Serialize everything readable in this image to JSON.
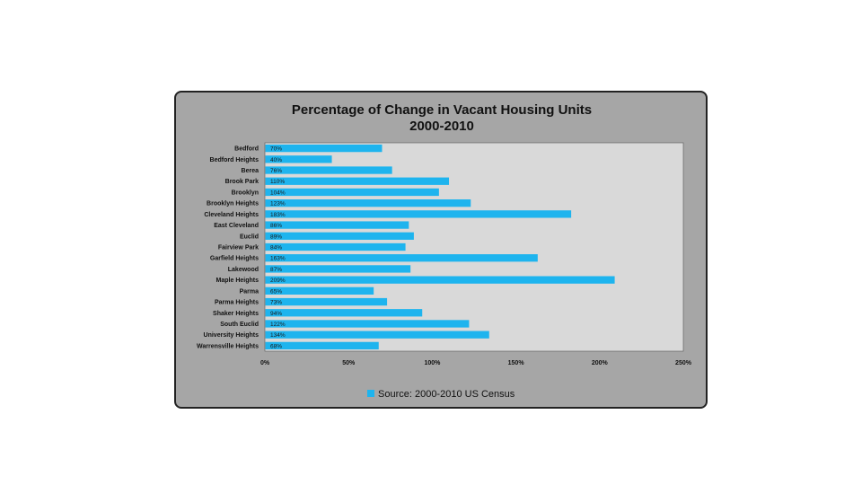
{
  "chart_data": {
    "type": "bar",
    "orientation": "horizontal",
    "title": [
      "Percentage of Change in Vacant Housing Units",
      "2000-2010"
    ],
    "categories": [
      "Bedford",
      "Bedford Heights",
      "Berea",
      "Brook Park",
      "Brooklyn",
      "Brooklyn Heights",
      "Cleveland Heights",
      "East Cleveland",
      "Euclid",
      "Fairview Park",
      "Garfield Heights",
      "Lakewood",
      "Maple Heights",
      "Parma",
      "Parma Heights",
      "Shaker Heights",
      "South Euclid",
      "University Heights",
      "Warrensville Heights"
    ],
    "values": [
      70,
      40,
      76,
      110,
      104,
      123,
      183,
      86,
      89,
      84,
      163,
      87,
      209,
      65,
      73,
      94,
      122,
      134,
      68
    ],
    "data_labels": [
      "70%",
      "40%",
      "76%",
      "110%",
      "104%",
      "123%",
      "183%",
      "86%",
      "89%",
      "84%",
      "163%",
      "87%",
      "209%",
      "65%",
      "73%",
      "94%",
      "122%",
      "134%",
      "68%"
    ],
    "xlim": [
      0,
      250
    ],
    "x_ticks": [
      0,
      50,
      100,
      150,
      200,
      250
    ],
    "x_tick_labels": [
      "0%",
      "50%",
      "100%",
      "150%",
      "200%",
      "250%"
    ],
    "grid": false,
    "legend": {
      "label": "Source: 2000-2010 US Census",
      "position": "bottom"
    },
    "colors": {
      "bar": "#1eb4ee",
      "plot_area": "#d9d9d9",
      "frame": "#a6a6a6",
      "frame_border": "#222222"
    }
  }
}
